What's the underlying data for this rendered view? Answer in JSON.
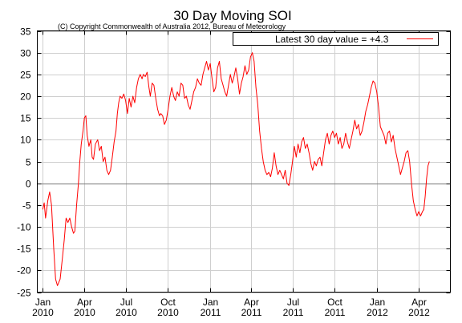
{
  "chart_data": {
    "type": "line",
    "title": "30 Day Moving SOI",
    "subtitle": "(C) Copyright Commonwealth of Australia 2012, Bureau of Meteorology",
    "xlabel": "",
    "ylabel": "",
    "ylim": [
      -25,
      35
    ],
    "y_ticks": [
      -25,
      -20,
      -15,
      -10,
      -5,
      0,
      5,
      10,
      15,
      20,
      25,
      30,
      35
    ],
    "xlim": [
      "2009-12-20",
      "2012-06-10"
    ],
    "x_ticks": [
      {
        "date": "2010-01-01",
        "line1": "Jan",
        "line2": "2010"
      },
      {
        "date": "2010-04-01",
        "line1": "Apr",
        "line2": "2010"
      },
      {
        "date": "2010-07-01",
        "line1": "Jul",
        "line2": "2010"
      },
      {
        "date": "2010-10-01",
        "line1": "Oct",
        "line2": "2010"
      },
      {
        "date": "2011-01-01",
        "line1": "Jan",
        "line2": "2011"
      },
      {
        "date": "2011-04-01",
        "line1": "Apr",
        "line2": "2011"
      },
      {
        "date": "2011-07-01",
        "line1": "Jul",
        "line2": "2011"
      },
      {
        "date": "2011-10-01",
        "line1": "Oct",
        "line2": "2011"
      },
      {
        "date": "2012-01-01",
        "line1": "Jan",
        "line2": "2012"
      },
      {
        "date": "2012-04-01",
        "line1": "Apr",
        "line2": "2012"
      }
    ],
    "grid": true,
    "legend_position": "top-right",
    "series": [
      {
        "name": "Latest 30 day value = +4.3",
        "color": "#ff0000",
        "points": [
          [
            "2010-01-01",
            -6.0
          ],
          [
            "2010-01-04",
            -4.5
          ],
          [
            "2010-01-07",
            -8.0
          ],
          [
            "2010-01-12",
            -4.0
          ],
          [
            "2010-01-16",
            -2.0
          ],
          [
            "2010-01-20",
            -5.0
          ],
          [
            "2010-01-25",
            -15.0
          ],
          [
            "2010-01-29",
            -22.0
          ],
          [
            "2010-02-02",
            -23.5
          ],
          [
            "2010-02-08",
            -22.0
          ],
          [
            "2010-02-13",
            -17.0
          ],
          [
            "2010-02-17",
            -13.0
          ],
          [
            "2010-02-21",
            -8.0
          ],
          [
            "2010-02-25",
            -9.0
          ],
          [
            "2010-03-01",
            -8.0
          ],
          [
            "2010-03-05",
            -10.0
          ],
          [
            "2010-03-09",
            -11.5
          ],
          [
            "2010-03-12",
            -11.0
          ],
          [
            "2010-03-16",
            -5.0
          ],
          [
            "2010-03-20",
            0.0
          ],
          [
            "2010-03-23",
            5.0
          ],
          [
            "2010-03-26",
            9.0
          ],
          [
            "2010-03-30",
            12.0
          ],
          [
            "2010-04-02",
            15.0
          ],
          [
            "2010-04-05",
            15.5
          ],
          [
            "2010-04-08",
            11.0
          ],
          [
            "2010-04-12",
            8.5
          ],
          [
            "2010-04-16",
            10.0
          ],
          [
            "2010-04-19",
            6.0
          ],
          [
            "2010-04-22",
            5.5
          ],
          [
            "2010-04-26",
            9.0
          ],
          [
            "2010-05-01",
            10.0
          ],
          [
            "2010-05-05",
            7.5
          ],
          [
            "2010-05-09",
            8.5
          ],
          [
            "2010-05-13",
            5.0
          ],
          [
            "2010-05-17",
            6.0
          ],
          [
            "2010-05-21",
            3.0
          ],
          [
            "2010-05-25",
            2.0
          ],
          [
            "2010-05-29",
            3.0
          ],
          [
            "2010-06-02",
            6.0
          ],
          [
            "2010-06-06",
            9.5
          ],
          [
            "2010-06-10",
            12.0
          ],
          [
            "2010-06-13",
            16.0
          ],
          [
            "2010-06-16",
            18.5
          ],
          [
            "2010-06-19",
            20.0
          ],
          [
            "2010-06-23",
            19.5
          ],
          [
            "2010-06-27",
            20.5
          ],
          [
            "2010-07-01",
            19.0
          ],
          [
            "2010-07-05",
            16.0
          ],
          [
            "2010-07-09",
            19.5
          ],
          [
            "2010-07-13",
            17.5
          ],
          [
            "2010-07-17",
            20.0
          ],
          [
            "2010-07-21",
            18.5
          ],
          [
            "2010-07-25",
            22.0
          ],
          [
            "2010-07-29",
            24.0
          ],
          [
            "2010-08-02",
            25.0
          ],
          [
            "2010-08-06",
            24.0
          ],
          [
            "2010-08-09",
            25.0
          ],
          [
            "2010-08-13",
            24.5
          ],
          [
            "2010-08-17",
            25.5
          ],
          [
            "2010-08-21",
            22.0
          ],
          [
            "2010-08-24",
            20.0
          ],
          [
            "2010-08-28",
            23.0
          ],
          [
            "2010-09-01",
            22.5
          ],
          [
            "2010-09-05",
            19.5
          ],
          [
            "2010-09-09",
            17.0
          ],
          [
            "2010-09-13",
            15.5
          ],
          [
            "2010-09-16",
            16.0
          ],
          [
            "2010-09-20",
            15.5
          ],
          [
            "2010-09-24",
            13.5
          ],
          [
            "2010-09-28",
            14.5
          ],
          [
            "2010-10-02",
            17.0
          ],
          [
            "2010-10-06",
            20.0
          ],
          [
            "2010-10-10",
            22.0
          ],
          [
            "2010-10-14",
            20.0
          ],
          [
            "2010-10-18",
            19.0
          ],
          [
            "2010-10-22",
            21.0
          ],
          [
            "2010-10-26",
            20.0
          ],
          [
            "2010-10-30",
            23.0
          ],
          [
            "2010-11-03",
            22.5
          ],
          [
            "2010-11-07",
            19.5
          ],
          [
            "2010-11-11",
            20.0
          ],
          [
            "2010-11-15",
            18.0
          ],
          [
            "2010-11-19",
            17.0
          ],
          [
            "2010-11-23",
            19.0
          ],
          [
            "2010-11-27",
            21.0
          ],
          [
            "2010-12-01",
            22.0
          ],
          [
            "2010-12-05",
            24.0
          ],
          [
            "2010-12-09",
            23.0
          ],
          [
            "2010-12-13",
            22.5
          ],
          [
            "2010-12-17",
            25.0
          ],
          [
            "2010-12-21",
            26.5
          ],
          [
            "2010-12-25",
            28.0
          ],
          [
            "2010-12-29",
            26.0
          ],
          [
            "2011-01-02",
            27.5
          ],
          [
            "2011-01-06",
            24.0
          ],
          [
            "2011-01-10",
            21.0
          ],
          [
            "2011-01-14",
            22.0
          ],
          [
            "2011-01-18",
            26.5
          ],
          [
            "2011-01-22",
            28.0
          ],
          [
            "2011-01-26",
            24.0
          ],
          [
            "2011-01-30",
            22.5
          ],
          [
            "2011-02-03",
            21.0
          ],
          [
            "2011-02-07",
            20.0
          ],
          [
            "2011-02-11",
            22.5
          ],
          [
            "2011-02-15",
            25.0
          ],
          [
            "2011-02-19",
            23.0
          ],
          [
            "2011-02-23",
            24.5
          ],
          [
            "2011-02-27",
            26.5
          ],
          [
            "2011-03-03",
            24.0
          ],
          [
            "2011-03-07",
            20.5
          ],
          [
            "2011-03-11",
            23.0
          ],
          [
            "2011-03-15",
            24.5
          ],
          [
            "2011-03-19",
            27.0
          ],
          [
            "2011-03-23",
            25.0
          ],
          [
            "2011-03-27",
            26.0
          ],
          [
            "2011-03-31",
            29.0
          ],
          [
            "2011-04-04",
            30.0
          ],
          [
            "2011-04-08",
            28.0
          ],
          [
            "2011-04-12",
            22.0
          ],
          [
            "2011-04-16",
            18.0
          ],
          [
            "2011-04-20",
            12.0
          ],
          [
            "2011-04-24",
            8.0
          ],
          [
            "2011-04-28",
            5.0
          ],
          [
            "2011-05-02",
            3.0
          ],
          [
            "2011-05-06",
            2.0
          ],
          [
            "2011-05-10",
            2.5
          ],
          [
            "2011-05-14",
            1.5
          ],
          [
            "2011-05-18",
            3.5
          ],
          [
            "2011-05-22",
            7.0
          ],
          [
            "2011-05-26",
            4.0
          ],
          [
            "2011-05-30",
            2.0
          ],
          [
            "2011-06-03",
            3.0
          ],
          [
            "2011-06-07",
            2.0
          ],
          [
            "2011-06-11",
            1.0
          ],
          [
            "2011-06-15",
            3.0
          ],
          [
            "2011-06-19",
            0.0
          ],
          [
            "2011-06-23",
            -0.5
          ],
          [
            "2011-06-27",
            2.0
          ],
          [
            "2011-07-01",
            5.0
          ],
          [
            "2011-07-05",
            8.5
          ],
          [
            "2011-07-09",
            6.0
          ],
          [
            "2011-07-13",
            9.0
          ],
          [
            "2011-07-17",
            7.0
          ],
          [
            "2011-07-21",
            9.5
          ],
          [
            "2011-07-25",
            10.5
          ],
          [
            "2011-07-29",
            8.0
          ],
          [
            "2011-08-02",
            9.0
          ],
          [
            "2011-08-06",
            7.0
          ],
          [
            "2011-08-10",
            4.5
          ],
          [
            "2011-08-14",
            3.0
          ],
          [
            "2011-08-18",
            5.0
          ],
          [
            "2011-08-22",
            4.0
          ],
          [
            "2011-08-26",
            5.5
          ],
          [
            "2011-08-30",
            6.0
          ],
          [
            "2011-09-03",
            4.0
          ],
          [
            "2011-09-07",
            7.0
          ],
          [
            "2011-09-11",
            10.0
          ],
          [
            "2011-09-15",
            11.5
          ],
          [
            "2011-09-19",
            9.0
          ],
          [
            "2011-09-23",
            11.0
          ],
          [
            "2011-09-27",
            12.0
          ],
          [
            "2011-10-01",
            10.5
          ],
          [
            "2011-10-05",
            11.5
          ],
          [
            "2011-10-09",
            9.0
          ],
          [
            "2011-10-13",
            10.5
          ],
          [
            "2011-10-17",
            8.0
          ],
          [
            "2011-10-21",
            9.0
          ],
          [
            "2011-10-25",
            11.5
          ],
          [
            "2011-10-29",
            9.5
          ],
          [
            "2011-11-02",
            8.0
          ],
          [
            "2011-11-06",
            10.0
          ],
          [
            "2011-11-10",
            12.0
          ],
          [
            "2011-11-14",
            14.5
          ],
          [
            "2011-11-18",
            12.5
          ],
          [
            "2011-11-22",
            13.5
          ],
          [
            "2011-11-26",
            11.0
          ],
          [
            "2011-11-30",
            12.0
          ],
          [
            "2011-12-04",
            14.0
          ],
          [
            "2011-12-08",
            16.5
          ],
          [
            "2011-12-12",
            18.0
          ],
          [
            "2011-12-16",
            20.0
          ],
          [
            "2011-12-20",
            22.0
          ],
          [
            "2011-12-24",
            23.5
          ],
          [
            "2011-12-28",
            23.0
          ],
          [
            "2012-01-01",
            21.0
          ],
          [
            "2012-01-05",
            17.5
          ],
          [
            "2012-01-09",
            13.0
          ],
          [
            "2012-01-13",
            12.0
          ],
          [
            "2012-01-17",
            11.0
          ],
          [
            "2012-01-21",
            9.0
          ],
          [
            "2012-01-25",
            11.5
          ],
          [
            "2012-01-29",
            12.0
          ],
          [
            "2012-02-02",
            9.5
          ],
          [
            "2012-02-06",
            11.0
          ],
          [
            "2012-02-10",
            8.0
          ],
          [
            "2012-02-14",
            6.0
          ],
          [
            "2012-02-18",
            4.0
          ],
          [
            "2012-02-22",
            2.0
          ],
          [
            "2012-02-26",
            3.5
          ],
          [
            "2012-03-01",
            5.0
          ],
          [
            "2012-03-05",
            7.0
          ],
          [
            "2012-03-09",
            7.5
          ],
          [
            "2012-03-13",
            5.0
          ],
          [
            "2012-03-17",
            0.0
          ],
          [
            "2012-03-21",
            -4.0
          ],
          [
            "2012-03-25",
            -6.0
          ],
          [
            "2012-03-29",
            -7.5
          ],
          [
            "2012-04-02",
            -6.5
          ],
          [
            "2012-04-06",
            -7.5
          ],
          [
            "2012-04-10",
            -6.5
          ],
          [
            "2012-04-13",
            -6.0
          ],
          [
            "2012-04-16",
            -3.0
          ],
          [
            "2012-04-19",
            1.0
          ],
          [
            "2012-04-22",
            4.0
          ],
          [
            "2012-04-25",
            5.0
          ]
        ]
      }
    ]
  }
}
